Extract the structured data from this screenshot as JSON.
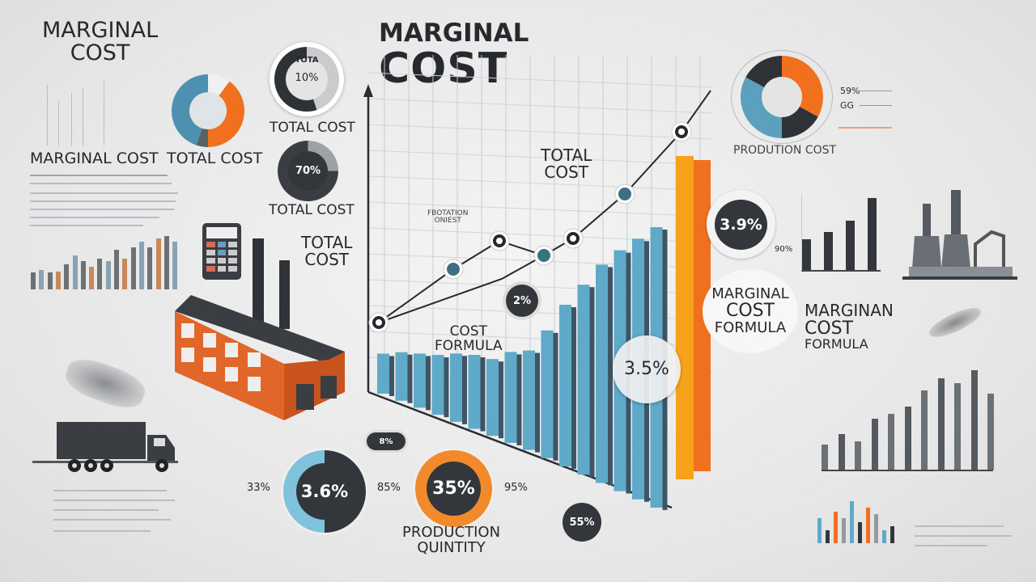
{
  "top_left_title": {
    "line1": "MARGINAL",
    "line2": "COST"
  },
  "center_title": {
    "line1": "MARGINAL",
    "line2": "COST"
  },
  "labels": {
    "marginal_cost": "MARGINAL COST",
    "total_cost_1": "TOTAL COST",
    "total_cost_2": "TOTAL COST",
    "total_cost_3": "TOTAL COST",
    "total_cost_4": {
      "line1": "TOTAL",
      "line2": "COST"
    },
    "total_cost_chart": {
      "line1": "TOTAL",
      "line2": "COST"
    },
    "flotation": {
      "line1": "FBOTATION",
      "line2": "ONIEST"
    },
    "cost_formula": {
      "line1": "COST",
      "line2": "FORMULA"
    },
    "production_cost": "PRODUTION COST",
    "marginal_formula_circle": {
      "line1": "MARGINAL",
      "line2": "COST",
      "line3": "FORMULA"
    },
    "marginan_formula": {
      "line1": "MARGINAN",
      "line2": "COST",
      "line3": "FORMULA"
    },
    "production_quantity": {
      "line1": "PRODUCTION",
      "line2": "QUINTITY"
    }
  },
  "badges": {
    "total_ring": {
      "title": "TOTA",
      "value": "10%"
    },
    "donut_70": "70%",
    "chart_2": "2%",
    "chart_35": "3.5%",
    "right_39": "3.9%",
    "right_90": "90%",
    "right_legend": [
      "59%",
      "GG"
    ],
    "bottom_36": "3.6%",
    "bottom_33": "33%",
    "bottom_85": "85%",
    "bottom_35": "35%",
    "bottom_95": "95%",
    "bottom_55": "55%",
    "bottom_8": "8%"
  },
  "colors": {
    "blue": "#5fa9c9",
    "orange": "#f0701e",
    "dark": "#33363b",
    "gray": "#6e7378"
  }
}
